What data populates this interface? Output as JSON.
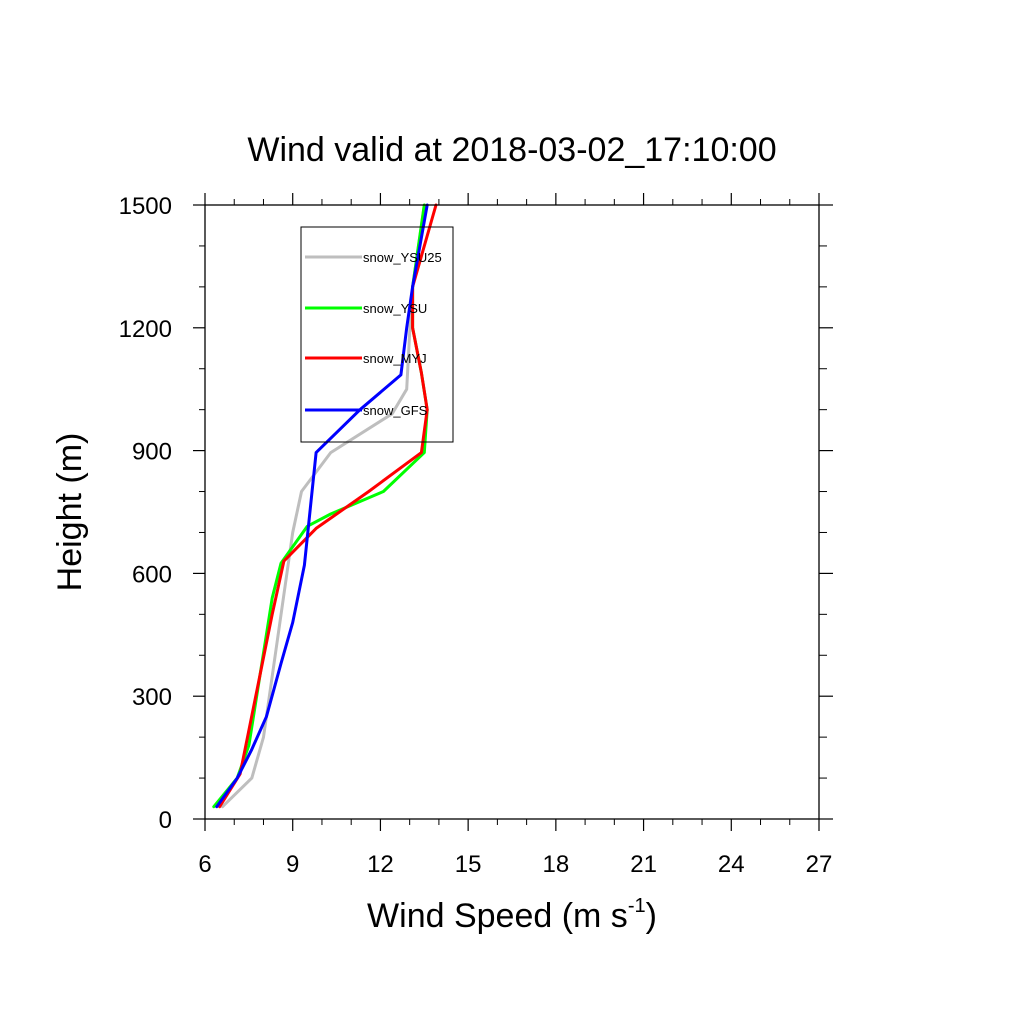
{
  "chart_data": {
    "type": "line",
    "title": "Wind valid at 2018-03-02_17:10:00",
    "xlabel": "Wind Speed (m s",
    "xlabel_sup": "-1",
    "xlabel_end": ")",
    "ylabel": "Height (m)",
    "xlim": [
      6,
      27
    ],
    "ylim": [
      0,
      1500
    ],
    "x_ticks": [
      6,
      9,
      12,
      15,
      18,
      21,
      24,
      27
    ],
    "y_ticks": [
      0,
      300,
      600,
      900,
      1200,
      1500
    ],
    "x_tick_labels": [
      "6",
      "9",
      "12",
      "15",
      "18",
      "21",
      "24",
      "27"
    ],
    "y_tick_labels": [
      "0",
      "300",
      "600",
      "900",
      "1200",
      "1500"
    ],
    "grid": false,
    "legend_position": "top-left",
    "series": [
      {
        "name": "snow_YSU25",
        "color": "#bebebe",
        "points": [
          [
            6.6,
            30
          ],
          [
            7.6,
            100
          ],
          [
            8.0,
            200
          ],
          [
            8.4,
            400
          ],
          [
            8.8,
            600
          ],
          [
            9.0,
            700
          ],
          [
            9.3,
            800
          ],
          [
            10.3,
            895
          ],
          [
            12.4,
            990
          ],
          [
            12.9,
            1050
          ],
          [
            13.0,
            1190
          ],
          [
            13.1,
            1300
          ],
          [
            13.5,
            1500
          ]
        ]
      },
      {
        "name": "snow_YSU",
        "color": "#00ff00",
        "points": [
          [
            6.3,
            30
          ],
          [
            7.1,
            100
          ],
          [
            7.5,
            180
          ],
          [
            8.3,
            540
          ],
          [
            8.6,
            625
          ],
          [
            9.5,
            715
          ],
          [
            10.3,
            745
          ],
          [
            12.1,
            800
          ],
          [
            13.5,
            895
          ],
          [
            13.6,
            1000
          ],
          [
            13.4,
            1090
          ],
          [
            13.1,
            1200
          ],
          [
            13.1,
            1300
          ],
          [
            13.5,
            1500
          ]
        ]
      },
      {
        "name": "snow_MYJ",
        "color": "#ff0000",
        "points": [
          [
            6.5,
            30
          ],
          [
            7.2,
            110
          ],
          [
            8.3,
            500
          ],
          [
            8.7,
            630
          ],
          [
            9.8,
            710
          ],
          [
            11.6,
            800
          ],
          [
            13.4,
            895
          ],
          [
            13.6,
            1000
          ],
          [
            13.4,
            1090
          ],
          [
            13.1,
            1200
          ],
          [
            13.1,
            1300
          ],
          [
            13.9,
            1500
          ]
        ]
      },
      {
        "name": "snow_GFS",
        "color": "#0000ff",
        "points": [
          [
            6.4,
            30
          ],
          [
            7.1,
            100
          ],
          [
            7.6,
            170
          ],
          [
            8.1,
            250
          ],
          [
            8.6,
            380
          ],
          [
            9.0,
            480
          ],
          [
            9.4,
            620
          ],
          [
            9.8,
            895
          ],
          [
            11.3,
            1000
          ],
          [
            12.7,
            1085
          ],
          [
            12.9,
            1200
          ],
          [
            13.1,
            1300
          ],
          [
            13.6,
            1500
          ]
        ]
      }
    ]
  }
}
